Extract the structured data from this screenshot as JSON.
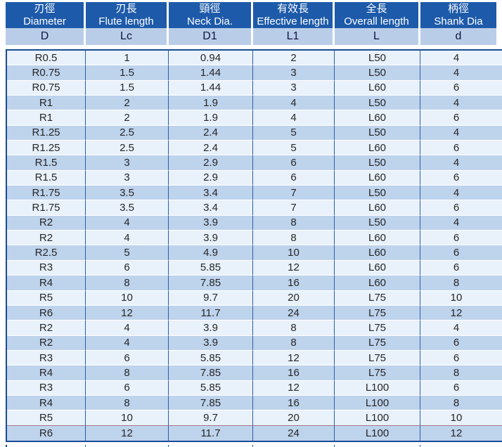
{
  "header": {
    "columns": [
      {
        "zh": "刃徑",
        "en": "Diameter",
        "symbol": "D"
      },
      {
        "zh": "刃長",
        "en": "Flute length",
        "symbol": "Lc"
      },
      {
        "zh": "頸徑",
        "en": "Neck Dia.",
        "symbol": "D1"
      },
      {
        "zh": "有效長",
        "en": "Effective length",
        "symbol": "L1"
      },
      {
        "zh": "全長",
        "en": "Overall length",
        "symbol": "L"
      },
      {
        "zh": "柄徑",
        "en": "Shank Dia",
        "symbol": "d"
      }
    ]
  },
  "rows": [
    [
      "R0.5",
      "1",
      "0.94",
      "2",
      "L50",
      "4"
    ],
    [
      "R0.75",
      "1.5",
      "1.44",
      "3",
      "L50",
      "4"
    ],
    [
      "R0.75",
      "1.5",
      "1.44",
      "3",
      "L60",
      "6"
    ],
    [
      "R1",
      "2",
      "1.9",
      "4",
      "L50",
      "4"
    ],
    [
      "R1",
      "2",
      "1.9",
      "4",
      "L60",
      "6"
    ],
    [
      "R1.25",
      "2.5",
      "2.4",
      "5",
      "L50",
      "4"
    ],
    [
      "R1.25",
      "2.5",
      "2.4",
      "5",
      "L60",
      "6"
    ],
    [
      "R1.5",
      "3",
      "2.9",
      "6",
      "L50",
      "4"
    ],
    [
      "R1.5",
      "3",
      "2.9",
      "6",
      "L60",
      "6"
    ],
    [
      "R1.75",
      "3.5",
      "3.4",
      "7",
      "L50",
      "4"
    ],
    [
      "R1.75",
      "3.5",
      "3.4",
      "7",
      "L60",
      "6"
    ],
    [
      "R2",
      "4",
      "3.9",
      "8",
      "L50",
      "4"
    ],
    [
      "R2",
      "4",
      "3.9",
      "8",
      "L60",
      "6"
    ],
    [
      "R2.5",
      "5",
      "4.9",
      "10",
      "L60",
      "6"
    ],
    [
      "R3",
      "6",
      "5.85",
      "12",
      "L60",
      "6"
    ],
    [
      "R4",
      "8",
      "7.85",
      "16",
      "L60",
      "8"
    ],
    [
      "R5",
      "10",
      "9.7",
      "20",
      "L75",
      "10"
    ],
    [
      "R6",
      "12",
      "11.7",
      "24",
      "L75",
      "12"
    ],
    [
      "R2",
      "4",
      "3.9",
      "8",
      "L75",
      "4"
    ],
    [
      "R2",
      "4",
      "3.9",
      "8",
      "L75",
      "6"
    ],
    [
      "R3",
      "6",
      "5.85",
      "12",
      "L75",
      "6"
    ],
    [
      "R4",
      "8",
      "7.85",
      "16",
      "L75",
      "8"
    ],
    [
      "R3",
      "6",
      "5.85",
      "12",
      "L100",
      "6"
    ],
    [
      "R4",
      "8",
      "7.85",
      "16",
      "L100",
      "8"
    ],
    [
      "R5",
      "10",
      "9.7",
      "20",
      "L100",
      "10"
    ],
    [
      "R6",
      "12",
      "11.7",
      "24",
      "L100",
      "12"
    ]
  ],
  "colors": {
    "header_bg": "#1d5aa9",
    "header_text": "#ffffff",
    "symbol_row_bg": "#b9cde8",
    "symbol_text": "#131340",
    "row_light": "#e9f2fb",
    "row_dark": "#bed3ec",
    "grid_line": "#2b5ea9",
    "outer_border": "#1a4b96",
    "cell_text": "#262626",
    "page_bg": "#ffffff"
  }
}
